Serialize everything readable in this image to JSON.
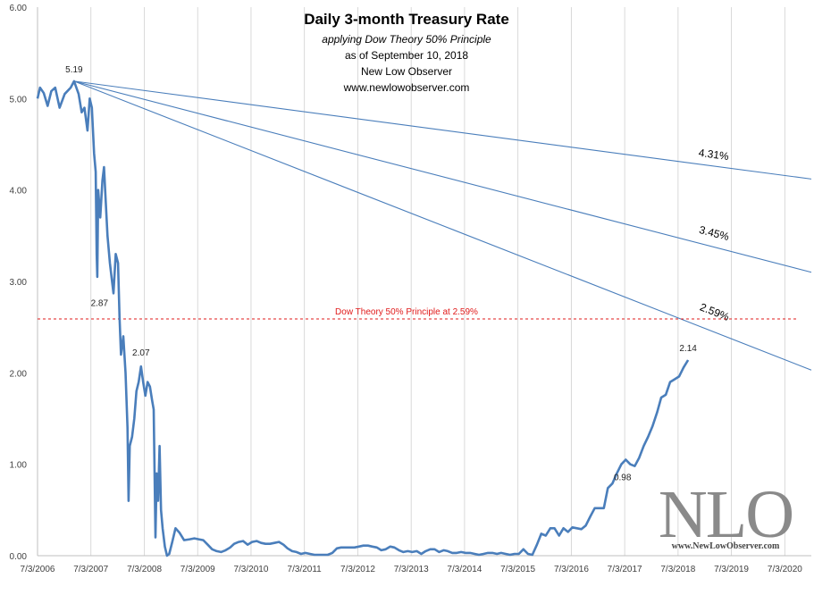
{
  "chart_data": {
    "type": "line",
    "title": "Daily 3-month Treasury Rate",
    "subtitle_lines": [
      "applying Dow Theory 50% Principle",
      "as of September 10, 2018",
      "New Low Observer",
      "www.newlowobserver.com"
    ],
    "xlabel": "",
    "ylabel": "",
    "x_ticks": [
      "7/3/2006",
      "7/3/2007",
      "7/3/2008",
      "7/3/2009",
      "7/3/2010",
      "7/3/2011",
      "7/3/2012",
      "7/3/2013",
      "7/3/2014",
      "7/3/2015",
      "7/3/2016",
      "7/3/2017",
      "7/3/2018",
      "7/3/2019",
      "7/3/2020"
    ],
    "y_ticks": [
      "0.00",
      "1.00",
      "2.00",
      "3.00",
      "4.00",
      "5.00",
      "6.00"
    ],
    "xlim": [
      "2006-07-03",
      "2020-12-31"
    ],
    "ylim": [
      0,
      6
    ],
    "grid": "vertical",
    "series": [
      {
        "color": "#4a7ebb",
        "points": [
          [
            "2006-07-03",
            5.0
          ],
          [
            "2006-07-20",
            5.12
          ],
          [
            "2006-08-15",
            5.06
          ],
          [
            "2006-09-10",
            4.92
          ],
          [
            "2006-10-05",
            5.08
          ],
          [
            "2006-11-01",
            5.12
          ],
          [
            "2006-12-01",
            4.9
          ],
          [
            "2007-01-05",
            5.05
          ],
          [
            "2007-02-15",
            5.12
          ],
          [
            "2007-03-10",
            5.19
          ],
          [
            "2007-04-10",
            5.05
          ],
          [
            "2007-05-01",
            4.85
          ],
          [
            "2007-05-20",
            4.9
          ],
          [
            "2007-06-10",
            4.65
          ],
          [
            "2007-06-25",
            5.0
          ],
          [
            "2007-07-10",
            4.9
          ],
          [
            "2007-07-25",
            4.4
          ],
          [
            "2007-08-05",
            4.2
          ],
          [
            "2007-08-12",
            3.3
          ],
          [
            "2007-08-16",
            3.05
          ],
          [
            "2007-08-22",
            4.0
          ],
          [
            "2007-09-05",
            3.7
          ],
          [
            "2007-09-20",
            4.1
          ],
          [
            "2007-10-01",
            4.25
          ],
          [
            "2007-10-12",
            3.9
          ],
          [
            "2007-10-25",
            3.5
          ],
          [
            "2007-11-10",
            3.2
          ],
          [
            "2007-11-25",
            3.0
          ],
          [
            "2007-12-05",
            2.87
          ],
          [
            "2007-12-20",
            3.3
          ],
          [
            "2008-01-05",
            3.2
          ],
          [
            "2008-01-15",
            2.6
          ],
          [
            "2008-01-25",
            2.2
          ],
          [
            "2008-02-10",
            2.4
          ],
          [
            "2008-02-25",
            2.0
          ],
          [
            "2008-03-10",
            1.4
          ],
          [
            "2008-03-17",
            0.6
          ],
          [
            "2008-03-25",
            1.2
          ],
          [
            "2008-04-10",
            1.3
          ],
          [
            "2008-04-25",
            1.5
          ],
          [
            "2008-05-10",
            1.8
          ],
          [
            "2008-05-25",
            1.9
          ],
          [
            "2008-06-10",
            2.07
          ],
          [
            "2008-06-25",
            1.9
          ],
          [
            "2008-07-10",
            1.75
          ],
          [
            "2008-07-25",
            1.9
          ],
          [
            "2008-08-10",
            1.85
          ],
          [
            "2008-08-25",
            1.7
          ],
          [
            "2008-09-05",
            1.6
          ],
          [
            "2008-09-17",
            0.2
          ],
          [
            "2008-09-25",
            0.9
          ],
          [
            "2008-10-05",
            0.6
          ],
          [
            "2008-10-15",
            1.2
          ],
          [
            "2008-10-25",
            0.5
          ],
          [
            "2008-11-05",
            0.3
          ],
          [
            "2008-11-20",
            0.1
          ],
          [
            "2008-12-05",
            0.0
          ],
          [
            "2008-12-20",
            0.02
          ],
          [
            "2009-01-10",
            0.15
          ],
          [
            "2009-02-01",
            0.3
          ],
          [
            "2009-03-01",
            0.25
          ],
          [
            "2009-04-01",
            0.17
          ],
          [
            "2009-05-10",
            0.18
          ],
          [
            "2009-06-10",
            0.19
          ],
          [
            "2009-07-10",
            0.18
          ],
          [
            "2009-08-10",
            0.17
          ],
          [
            "2009-09-10",
            0.12
          ],
          [
            "2009-10-10",
            0.07
          ],
          [
            "2009-11-10",
            0.05
          ],
          [
            "2009-12-10",
            0.04
          ],
          [
            "2010-01-10",
            0.06
          ],
          [
            "2010-02-10",
            0.09
          ],
          [
            "2010-03-10",
            0.13
          ],
          [
            "2010-04-10",
            0.15
          ],
          [
            "2010-05-10",
            0.16
          ],
          [
            "2010-06-10",
            0.12
          ],
          [
            "2010-07-10",
            0.15
          ],
          [
            "2010-08-10",
            0.16
          ],
          [
            "2010-09-10",
            0.14
          ],
          [
            "2010-10-10",
            0.13
          ],
          [
            "2010-11-10",
            0.13
          ],
          [
            "2010-12-10",
            0.14
          ],
          [
            "2011-01-10",
            0.15
          ],
          [
            "2011-02-10",
            0.12
          ],
          [
            "2011-03-10",
            0.08
          ],
          [
            "2011-04-10",
            0.05
          ],
          [
            "2011-05-10",
            0.04
          ],
          [
            "2011-06-10",
            0.02
          ],
          [
            "2011-07-10",
            0.03
          ],
          [
            "2011-08-10",
            0.02
          ],
          [
            "2011-09-10",
            0.01
          ],
          [
            "2011-10-10",
            0.01
          ],
          [
            "2011-11-10",
            0.01
          ],
          [
            "2011-12-10",
            0.01
          ],
          [
            "2012-01-10",
            0.03
          ],
          [
            "2012-02-10",
            0.08
          ],
          [
            "2012-03-10",
            0.09
          ],
          [
            "2012-04-10",
            0.09
          ],
          [
            "2012-05-10",
            0.09
          ],
          [
            "2012-06-10",
            0.09
          ],
          [
            "2012-07-10",
            0.1
          ],
          [
            "2012-08-10",
            0.11
          ],
          [
            "2012-09-10",
            0.11
          ],
          [
            "2012-10-10",
            0.1
          ],
          [
            "2012-11-10",
            0.09
          ],
          [
            "2012-12-10",
            0.06
          ],
          [
            "2013-01-10",
            0.07
          ],
          [
            "2013-02-10",
            0.1
          ],
          [
            "2013-03-10",
            0.09
          ],
          [
            "2013-04-10",
            0.06
          ],
          [
            "2013-05-10",
            0.04
          ],
          [
            "2013-06-10",
            0.05
          ],
          [
            "2013-07-10",
            0.04
          ],
          [
            "2013-08-10",
            0.05
          ],
          [
            "2013-09-10",
            0.02
          ],
          [
            "2013-10-10",
            0.05
          ],
          [
            "2013-11-10",
            0.07
          ],
          [
            "2013-12-10",
            0.07
          ],
          [
            "2014-01-10",
            0.04
          ],
          [
            "2014-02-10",
            0.06
          ],
          [
            "2014-03-10",
            0.05
          ],
          [
            "2014-04-10",
            0.03
          ],
          [
            "2014-05-10",
            0.03
          ],
          [
            "2014-06-10",
            0.04
          ],
          [
            "2014-07-10",
            0.03
          ],
          [
            "2014-08-10",
            0.03
          ],
          [
            "2014-09-10",
            0.02
          ],
          [
            "2014-10-10",
            0.01
          ],
          [
            "2014-11-10",
            0.02
          ],
          [
            "2014-12-10",
            0.03
          ],
          [
            "2015-01-10",
            0.03
          ],
          [
            "2015-02-10",
            0.02
          ],
          [
            "2015-03-10",
            0.03
          ],
          [
            "2015-04-10",
            0.02
          ],
          [
            "2015-05-10",
            0.01
          ],
          [
            "2015-06-10",
            0.02
          ],
          [
            "2015-07-10",
            0.02
          ],
          [
            "2015-08-10",
            0.07
          ],
          [
            "2015-09-10",
            0.02
          ],
          [
            "2015-10-10",
            0.01
          ],
          [
            "2015-11-10",
            0.12
          ],
          [
            "2015-12-10",
            0.24
          ],
          [
            "2016-01-10",
            0.22
          ],
          [
            "2016-02-10",
            0.3
          ],
          [
            "2016-03-10",
            0.3
          ],
          [
            "2016-04-10",
            0.22
          ],
          [
            "2016-05-10",
            0.3
          ],
          [
            "2016-06-10",
            0.26
          ],
          [
            "2016-07-10",
            0.31
          ],
          [
            "2016-08-10",
            0.3
          ],
          [
            "2016-09-10",
            0.29
          ],
          [
            "2016-10-10",
            0.33
          ],
          [
            "2016-11-10",
            0.43
          ],
          [
            "2016-12-10",
            0.52
          ],
          [
            "2017-01-10",
            0.52
          ],
          [
            "2017-02-10",
            0.52
          ],
          [
            "2017-03-10",
            0.74
          ],
          [
            "2017-04-10",
            0.79
          ],
          [
            "2017-05-10",
            0.9
          ],
          [
            "2017-06-10",
            1.0
          ],
          [
            "2017-07-10",
            1.05
          ],
          [
            "2017-08-10",
            1.0
          ],
          [
            "2017-09-10",
            0.98
          ],
          [
            "2017-10-10",
            1.07
          ],
          [
            "2017-11-10",
            1.2
          ],
          [
            "2017-12-10",
            1.3
          ],
          [
            "2018-01-10",
            1.42
          ],
          [
            "2018-02-10",
            1.57
          ],
          [
            "2018-03-10",
            1.73
          ],
          [
            "2018-04-10",
            1.76
          ],
          [
            "2018-05-10",
            1.9
          ],
          [
            "2018-06-10",
            1.93
          ],
          [
            "2018-07-10",
            1.96
          ],
          [
            "2018-08-10",
            2.06
          ],
          [
            "2018-09-10",
            2.14
          ]
        ]
      }
    ],
    "value_labels": [
      {
        "x": "2007-03-10",
        "y": 5.19,
        "text": "5.19"
      },
      {
        "x": "2007-12-05",
        "y": 2.87,
        "text": "2.87"
      },
      {
        "x": "2008-06-10",
        "y": 2.07,
        "text": "2.07"
      },
      {
        "x": "2017-09-10",
        "y": 0.98,
        "text": "0.98"
      },
      {
        "x": "2018-09-10",
        "y": 2.14,
        "text": "2.14"
      }
    ],
    "trend_lines": [
      {
        "from": [
          "2007-03-10",
          5.19
        ],
        "to": [
          "2020-12-31",
          4.12
        ],
        "label": "4.31%",
        "label_at": [
          "2019-03-01",
          4.31
        ]
      },
      {
        "from": [
          "2007-03-10",
          5.19
        ],
        "to": [
          "2020-12-31",
          3.1
        ],
        "label": "3.45%",
        "label_at": [
          "2019-03-01",
          3.45
        ]
      },
      {
        "from": [
          "2007-03-10",
          5.19
        ],
        "to": [
          "2020-12-31",
          2.03
        ],
        "label": "2.59%",
        "label_at": [
          "2019-03-01",
          2.59
        ]
      }
    ],
    "reference_line": {
      "y": 2.59,
      "color": "#e01b1b",
      "label": "Dow Theory 50% Principle at 2.59%"
    }
  },
  "watermark": {
    "text": "NLO",
    "url": "www.NewLowObserver.com"
  }
}
